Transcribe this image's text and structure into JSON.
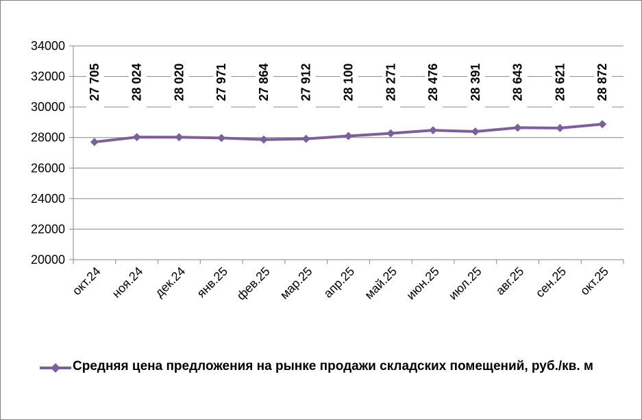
{
  "chart_data": {
    "type": "line",
    "categories": [
      "окт.24",
      "ноя.24",
      "дек.24",
      "янв.25",
      "фев.25",
      "мар.25",
      "апр.25",
      "май.25",
      "июн.25",
      "июл.25",
      "авг.25",
      "сен.25",
      "окт.25"
    ],
    "series": [
      {
        "name": "Средняя цена предложения на рынке продажи складских помещений, руб./кв. м",
        "values": [
          27705,
          28024,
          28020,
          27971,
          27864,
          27912,
          28100,
          28271,
          28476,
          28391,
          28643,
          28621,
          28872
        ],
        "data_labels": [
          "27 705",
          "28 024",
          "28 020",
          "27 971",
          "27 864",
          "27 912",
          "28 100",
          "28 271",
          "28 476",
          "28 391",
          "28 643",
          "28 621",
          "28 872"
        ],
        "color": "#7e5f9e"
      }
    ],
    "ylim": [
      20000,
      34000
    ],
    "yticks": [
      "20000",
      "22000",
      "24000",
      "26000",
      "28000",
      "30000",
      "32000",
      "34000"
    ],
    "ytick_values": [
      20000,
      22000,
      24000,
      26000,
      28000,
      30000,
      32000,
      34000
    ],
    "grid": true,
    "gridline_color": "#868686",
    "legend_position": "bottom",
    "marker": "diamond"
  },
  "legend": {
    "label": "Средняя цена предложения на рынке продажи складских помещений, руб./кв. м"
  }
}
